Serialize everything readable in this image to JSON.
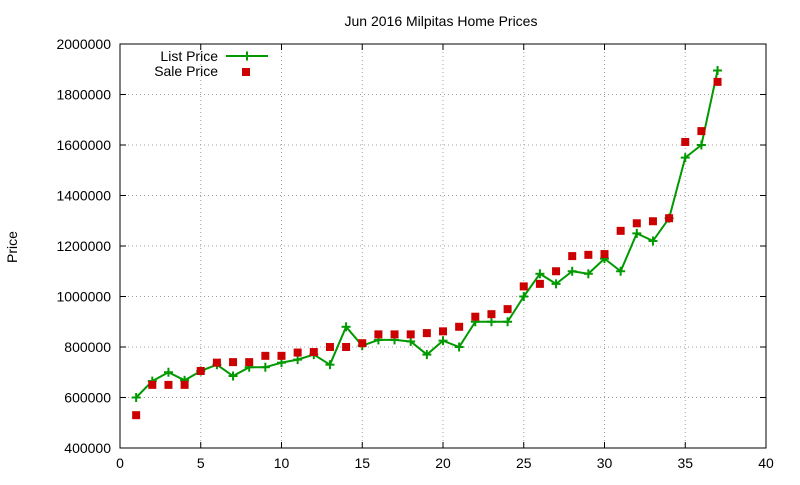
{
  "chart_data": {
    "type": "line",
    "title": "Jun 2016 Milpitas Home Prices",
    "xlabel": "",
    "ylabel": "Price",
    "xlim": [
      0,
      40
    ],
    "ylim": [
      400000,
      2000000
    ],
    "x_ticks": [
      0,
      5,
      10,
      15,
      20,
      25,
      30,
      35,
      40
    ],
    "y_ticks": [
      400000,
      600000,
      800000,
      1000000,
      1200000,
      1400000,
      1600000,
      1800000,
      2000000
    ],
    "grid": true,
    "legend_position": "top-left",
    "series": [
      {
        "name": "List Price",
        "style": "line-with-plus-markers",
        "color": "#009900",
        "x": [
          1,
          2,
          3,
          4,
          5,
          6,
          7,
          8,
          9,
          10,
          11,
          12,
          13,
          14,
          15,
          16,
          17,
          18,
          19,
          20,
          21,
          22,
          23,
          24,
          25,
          26,
          27,
          28,
          29,
          30,
          31,
          32,
          33,
          34,
          35,
          36,
          37
        ],
        "values": [
          600000,
          665000,
          700000,
          668000,
          705000,
          730000,
          685000,
          720000,
          720000,
          738000,
          750000,
          770000,
          730000,
          880000,
          805000,
          828000,
          828000,
          822000,
          770000,
          825000,
          800000,
          900000,
          900000,
          900000,
          1000000,
          1090000,
          1050000,
          1100000,
          1090000,
          1150000,
          1100000,
          1250000,
          1220000,
          1310000,
          1550000,
          1600000,
          1895000
        ]
      },
      {
        "name": "Sale Price",
        "style": "square-markers",
        "color": "#cc0000",
        "x": [
          1,
          2,
          3,
          4,
          5,
          6,
          7,
          8,
          9,
          10,
          11,
          12,
          13,
          14,
          15,
          16,
          17,
          18,
          19,
          20,
          21,
          22,
          23,
          24,
          25,
          26,
          27,
          28,
          29,
          30,
          31,
          32,
          33,
          34,
          35,
          36,
          37
        ],
        "values": [
          530000,
          650000,
          650000,
          650000,
          705000,
          738000,
          740000,
          740000,
          765000,
          765000,
          778000,
          780000,
          800000,
          800000,
          815000,
          850000,
          850000,
          850000,
          855000,
          862000,
          880000,
          920000,
          930000,
          950000,
          1040000,
          1050000,
          1100000,
          1160000,
          1165000,
          1168000,
          1260000,
          1290000,
          1298000,
          1310000,
          1612000,
          1655000,
          1850000
        ]
      }
    ]
  }
}
